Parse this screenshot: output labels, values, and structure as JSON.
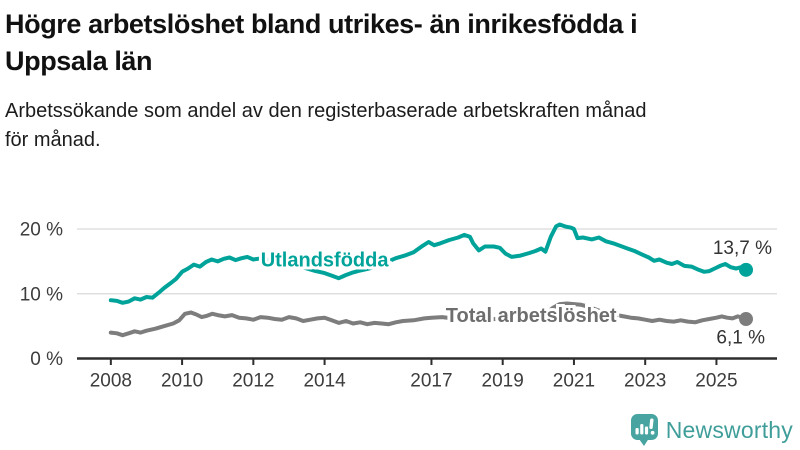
{
  "header": {
    "title_lines": [
      "Högre arbetslöshet bland utrikes- än inrikesfödda i",
      "Uppsala län"
    ],
    "subtitle_lines": [
      "Arbetssökande som andel av den registerbaserade arbetskraften månad",
      "för månad."
    ]
  },
  "footer": {
    "brand": "Newsworthy",
    "brand_color": "#3f9e9a",
    "logo_icon": "bar-chart-speech-bubble-icon"
  },
  "chart_data": {
    "type": "line",
    "unit": "%",
    "grid": "horizontal",
    "x_axis": {
      "range": [
        2007.05,
        2026.7
      ],
      "ticks": [
        2008,
        2010,
        2012,
        2014,
        2017,
        2019,
        2021,
        2023,
        2025
      ],
      "tick_labels": [
        "2008",
        "2010",
        "2012",
        "2014",
        "2017",
        "2019",
        "2021",
        "2023",
        "2025"
      ]
    },
    "y_axis": {
      "range": [
        0,
        22.4
      ],
      "ticks": [
        0,
        10,
        20
      ],
      "tick_labels": [
        "0 %",
        "10 %",
        "20 %"
      ]
    },
    "colors": {
      "axis": "#2e2e2e",
      "grid": "#d9d9d9",
      "tick_text": "#3d3d3d",
      "end_label_text": "#333333"
    },
    "series": [
      {
        "name": "Utlandsfödda",
        "color": "#00a39a",
        "label_color": "#00a39a",
        "label_anchor": [
          2014.0,
          15.3
        ],
        "end_label": "13,7 %",
        "end_value": 13.7,
        "end_marker": true,
        "end_label_side": "above",
        "points": [
          [
            2008.0,
            9.0
          ],
          [
            2008.17,
            8.9
          ],
          [
            2008.33,
            8.6
          ],
          [
            2008.5,
            8.8
          ],
          [
            2008.67,
            9.3
          ],
          [
            2008.83,
            9.1
          ],
          [
            2009.0,
            9.5
          ],
          [
            2009.17,
            9.4
          ],
          [
            2009.33,
            10.1
          ],
          [
            2009.5,
            10.9
          ],
          [
            2009.67,
            11.6
          ],
          [
            2009.83,
            12.3
          ],
          [
            2010.0,
            13.4
          ],
          [
            2010.17,
            13.9
          ],
          [
            2010.33,
            14.5
          ],
          [
            2010.5,
            14.2
          ],
          [
            2010.67,
            14.9
          ],
          [
            2010.83,
            15.3
          ],
          [
            2011.0,
            15.0
          ],
          [
            2011.17,
            15.4
          ],
          [
            2011.33,
            15.6
          ],
          [
            2011.5,
            15.2
          ],
          [
            2011.67,
            15.5
          ],
          [
            2011.83,
            15.7
          ],
          [
            2012.0,
            15.3
          ],
          [
            2012.25,
            15.5
          ],
          [
            2012.5,
            15.1
          ],
          [
            2012.75,
            14.8
          ],
          [
            2013.0,
            14.6
          ],
          [
            2013.25,
            14.3
          ],
          [
            2013.5,
            13.9
          ],
          [
            2013.75,
            13.5
          ],
          [
            2014.0,
            13.2
          ],
          [
            2014.2,
            12.8
          ],
          [
            2014.4,
            12.4
          ],
          [
            2014.6,
            12.9
          ],
          [
            2014.8,
            13.3
          ],
          [
            2015.0,
            13.6
          ],
          [
            2015.25,
            13.9
          ],
          [
            2015.5,
            14.3
          ],
          [
            2015.75,
            14.9
          ],
          [
            2016.0,
            15.5
          ],
          [
            2016.25,
            15.9
          ],
          [
            2016.5,
            16.4
          ],
          [
            2016.75,
            17.4
          ],
          [
            2016.92,
            18.0
          ],
          [
            2017.08,
            17.5
          ],
          [
            2017.25,
            17.8
          ],
          [
            2017.5,
            18.3
          ],
          [
            2017.75,
            18.7
          ],
          [
            2017.92,
            19.1
          ],
          [
            2018.08,
            18.8
          ],
          [
            2018.17,
            17.8
          ],
          [
            2018.33,
            16.7
          ],
          [
            2018.5,
            17.3
          ],
          [
            2018.75,
            17.3
          ],
          [
            2018.92,
            17.1
          ],
          [
            2019.08,
            16.2
          ],
          [
            2019.25,
            15.7
          ],
          [
            2019.5,
            15.9
          ],
          [
            2019.75,
            16.3
          ],
          [
            2019.92,
            16.6
          ],
          [
            2020.08,
            17.0
          ],
          [
            2020.2,
            16.5
          ],
          [
            2020.35,
            18.8
          ],
          [
            2020.5,
            20.4
          ],
          [
            2020.6,
            20.7
          ],
          [
            2020.75,
            20.4
          ],
          [
            2020.92,
            20.2
          ],
          [
            2021.0,
            20.0
          ],
          [
            2021.1,
            18.6
          ],
          [
            2021.25,
            18.7
          ],
          [
            2021.5,
            18.4
          ],
          [
            2021.7,
            18.7
          ],
          [
            2021.9,
            18.1
          ],
          [
            2022.1,
            17.8
          ],
          [
            2022.3,
            17.4
          ],
          [
            2022.5,
            17.0
          ],
          [
            2022.7,
            16.6
          ],
          [
            2022.9,
            16.1
          ],
          [
            2023.1,
            15.6
          ],
          [
            2023.25,
            15.1
          ],
          [
            2023.4,
            15.3
          ],
          [
            2023.6,
            14.8
          ],
          [
            2023.75,
            14.6
          ],
          [
            2023.9,
            14.9
          ],
          [
            2024.1,
            14.3
          ],
          [
            2024.3,
            14.2
          ],
          [
            2024.5,
            13.7
          ],
          [
            2024.65,
            13.4
          ],
          [
            2024.8,
            13.5
          ],
          [
            2024.95,
            13.9
          ],
          [
            2025.1,
            14.3
          ],
          [
            2025.25,
            14.6
          ],
          [
            2025.4,
            14.1
          ],
          [
            2025.55,
            13.9
          ],
          [
            2025.7,
            14.1
          ],
          [
            2025.83,
            13.7
          ]
        ]
      },
      {
        "name": "Total arbetslöshet",
        "color": "#7d7d7d",
        "label_color": "#6e6e6e",
        "label_anchor": [
          2019.8,
          6.7
        ],
        "end_label": "6,1 %",
        "end_value": 6.1,
        "end_marker": true,
        "end_label_side": "below",
        "points": [
          [
            2008.0,
            4.0
          ],
          [
            2008.17,
            3.9
          ],
          [
            2008.33,
            3.6
          ],
          [
            2008.5,
            3.9
          ],
          [
            2008.67,
            4.2
          ],
          [
            2008.83,
            4.0
          ],
          [
            2009.0,
            4.3
          ],
          [
            2009.25,
            4.6
          ],
          [
            2009.5,
            5.0
          ],
          [
            2009.75,
            5.4
          ],
          [
            2009.92,
            5.9
          ],
          [
            2010.08,
            6.9
          ],
          [
            2010.25,
            7.1
          ],
          [
            2010.4,
            6.8
          ],
          [
            2010.55,
            6.4
          ],
          [
            2010.7,
            6.6
          ],
          [
            2010.85,
            6.9
          ],
          [
            2011.0,
            6.7
          ],
          [
            2011.2,
            6.5
          ],
          [
            2011.4,
            6.7
          ],
          [
            2011.6,
            6.3
          ],
          [
            2011.8,
            6.2
          ],
          [
            2012.0,
            6.0
          ],
          [
            2012.2,
            6.4
          ],
          [
            2012.4,
            6.3
          ],
          [
            2012.6,
            6.1
          ],
          [
            2012.8,
            6.0
          ],
          [
            2013.0,
            6.4
          ],
          [
            2013.2,
            6.2
          ],
          [
            2013.4,
            5.8
          ],
          [
            2013.6,
            6.0
          ],
          [
            2013.8,
            6.2
          ],
          [
            2014.0,
            6.3
          ],
          [
            2014.2,
            5.9
          ],
          [
            2014.4,
            5.5
          ],
          [
            2014.6,
            5.8
          ],
          [
            2014.8,
            5.4
          ],
          [
            2015.0,
            5.6
          ],
          [
            2015.2,
            5.3
          ],
          [
            2015.4,
            5.5
          ],
          [
            2015.6,
            5.4
          ],
          [
            2015.8,
            5.3
          ],
          [
            2016.0,
            5.6
          ],
          [
            2016.2,
            5.8
          ],
          [
            2016.5,
            5.9
          ],
          [
            2016.8,
            6.2
          ],
          [
            2017.0,
            6.3
          ],
          [
            2017.3,
            6.4
          ],
          [
            2017.6,
            6.2
          ],
          [
            2017.9,
            6.3
          ],
          [
            2018.2,
            6.1
          ],
          [
            2018.5,
            6.0
          ],
          [
            2018.8,
            6.1
          ],
          [
            2019.1,
            6.1
          ],
          [
            2019.4,
            5.9
          ],
          [
            2019.7,
            6.0
          ],
          [
            2019.95,
            6.2
          ],
          [
            2020.2,
            6.9
          ],
          [
            2020.4,
            7.8
          ],
          [
            2020.6,
            8.4
          ],
          [
            2020.8,
            8.5
          ],
          [
            2021.0,
            8.4
          ],
          [
            2021.2,
            8.3
          ],
          [
            2021.4,
            8.0
          ],
          [
            2021.6,
            7.6
          ],
          [
            2021.8,
            7.2
          ],
          [
            2022.0,
            6.9
          ],
          [
            2022.2,
            6.7
          ],
          [
            2022.4,
            6.5
          ],
          [
            2022.6,
            6.3
          ],
          [
            2022.8,
            6.2
          ],
          [
            2023.0,
            6.0
          ],
          [
            2023.2,
            5.8
          ],
          [
            2023.4,
            6.0
          ],
          [
            2023.6,
            5.8
          ],
          [
            2023.8,
            5.7
          ],
          [
            2024.0,
            5.9
          ],
          [
            2024.2,
            5.7
          ],
          [
            2024.4,
            5.6
          ],
          [
            2024.6,
            5.9
          ],
          [
            2024.8,
            6.1
          ],
          [
            2025.0,
            6.3
          ],
          [
            2025.15,
            6.5
          ],
          [
            2025.3,
            6.3
          ],
          [
            2025.45,
            6.2
          ],
          [
            2025.6,
            6.5
          ],
          [
            2025.83,
            6.1
          ]
        ]
      }
    ]
  }
}
